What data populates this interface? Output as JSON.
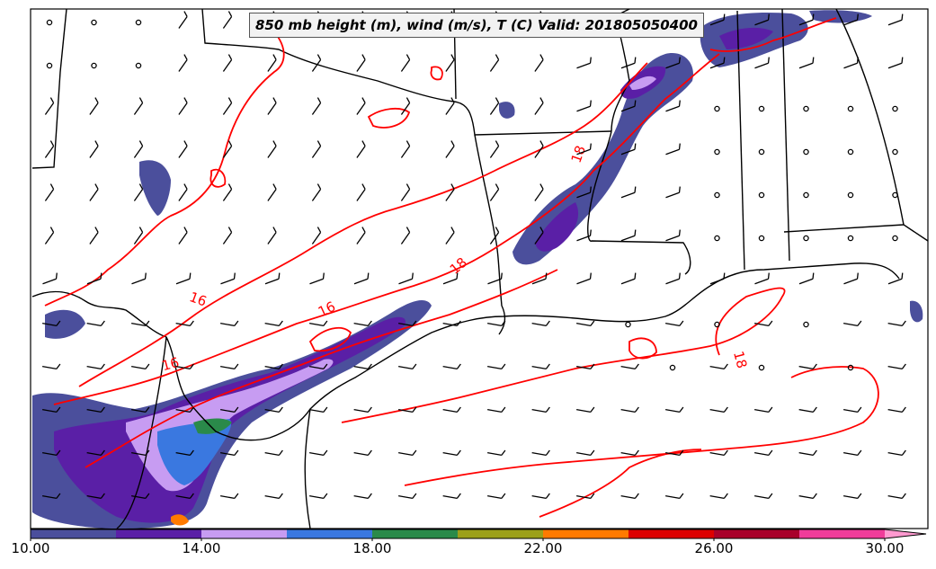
{
  "title": "850 mb height (m), wind (m/s), T (C) Valid: 201805050400",
  "contour_labels": [
    "16",
    "16",
    "16",
    "18",
    "18",
    "18"
  ],
  "colorbar": {
    "tick_labels": [
      "10.00",
      "14.00",
      "18.00",
      "22.00",
      "26.00",
      "30.00"
    ],
    "colors": [
      "#4b4f9c",
      "#5a1fa6",
      "#c79cf2",
      "#3a78e0",
      "#2a8a4a",
      "#9ca01a",
      "#ff7a00",
      "#dd0000",
      "#a8002a",
      "#f03c9a",
      "#ff9ad0"
    ]
  },
  "colors": {
    "contour": "#ff0000",
    "borders": "#000000",
    "wind_barb": "#000000"
  }
}
